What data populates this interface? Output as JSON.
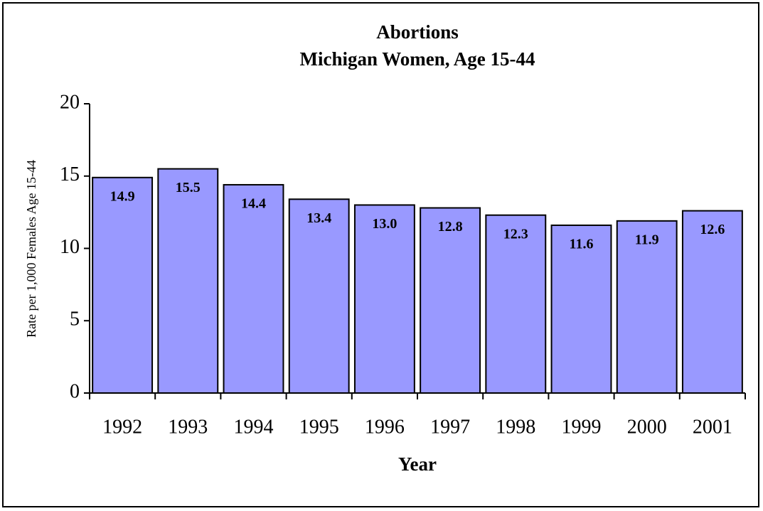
{
  "chart_data": {
    "type": "bar",
    "title": "Abortions",
    "subtitle": "Michigan Women, Age 15-44",
    "x_label": "Year",
    "y_label": "Rate per 1,000 Females Age 15-44",
    "categories": [
      "1992",
      "1993",
      "1994",
      "1995",
      "1996",
      "1997",
      "1998",
      "1999",
      "2000",
      "2001"
    ],
    "values": [
      14.9,
      15.5,
      14.4,
      13.4,
      13.0,
      12.8,
      12.3,
      11.6,
      11.9,
      12.6
    ],
    "value_labels": [
      "14.9",
      "15.5",
      "14.4",
      "13.4",
      "13.0",
      "12.8",
      "12.3",
      "11.6",
      "11.9",
      "12.6"
    ],
    "color": "#9999ff",
    "label_color": "#003300",
    "ylim": [
      0,
      20
    ],
    "yticks": [
      0,
      5,
      10,
      15,
      20
    ],
    "grid": false
  }
}
